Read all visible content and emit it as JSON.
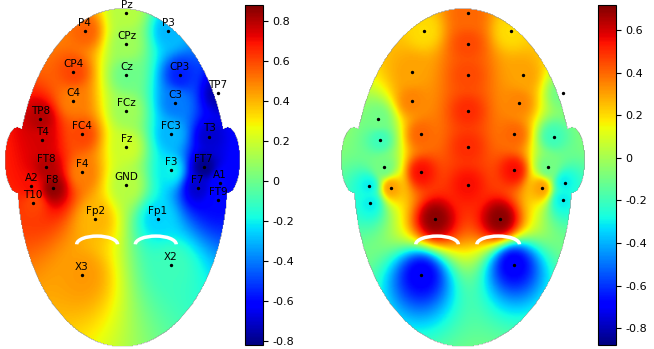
{
  "chart_data": [
    {
      "type": "topomap",
      "electrodes": [
        "Pz",
        "CPz",
        "P4",
        "P3",
        "CP4",
        "Cz",
        "CP3",
        "TP7",
        "TP8",
        "C4",
        "FCz",
        "C3",
        "T4",
        "FC4",
        "FC3",
        "T3",
        "Fz",
        "FT8",
        "F4",
        "F3",
        "FT7",
        "A2",
        "F8",
        "GND",
        "F7",
        "A1",
        "T10",
        "FT9",
        "Fp2",
        "Fp1",
        "X3",
        "X2"
      ],
      "values": [
        0.15,
        0.1,
        0.55,
        -0.3,
        0.6,
        0.0,
        -0.55,
        -0.75,
        0.8,
        0.5,
        0.1,
        -0.4,
        0.75,
        0.6,
        -0.3,
        -0.7,
        0.2,
        0.8,
        0.5,
        -0.2,
        -0.8,
        0.7,
        0.85,
        0.15,
        -0.7,
        -0.6,
        0.6,
        -0.6,
        0.4,
        -0.25,
        0.45,
        -0.1
      ],
      "colorbar_range": [
        -0.82,
        0.88
      ],
      "colorbar_ticks": [
        -0.8,
        -0.6,
        -0.4,
        -0.2,
        0,
        0.2,
        0.4,
        0.6,
        0.8
      ]
    },
    {
      "type": "topomap",
      "values": [
        0.4,
        0.45,
        0.2,
        0.2,
        0.3,
        0.45,
        0.3,
        -0.1,
        -0.1,
        0.35,
        0.5,
        0.35,
        -0.2,
        0.4,
        0.4,
        -0.2,
        0.5,
        -0.1,
        0.55,
        0.55,
        -0.1,
        -0.3,
        0.3,
        0.55,
        0.3,
        -0.3,
        -0.3,
        -0.3,
        0.7,
        0.7,
        -0.7,
        -0.7
      ],
      "colorbar_range": [
        -0.88,
        0.72
      ],
      "colorbar_ticks": [
        -0.8,
        -0.6,
        -0.4,
        -0.2,
        0,
        0.2,
        0.4,
        0.6
      ]
    }
  ]
}
